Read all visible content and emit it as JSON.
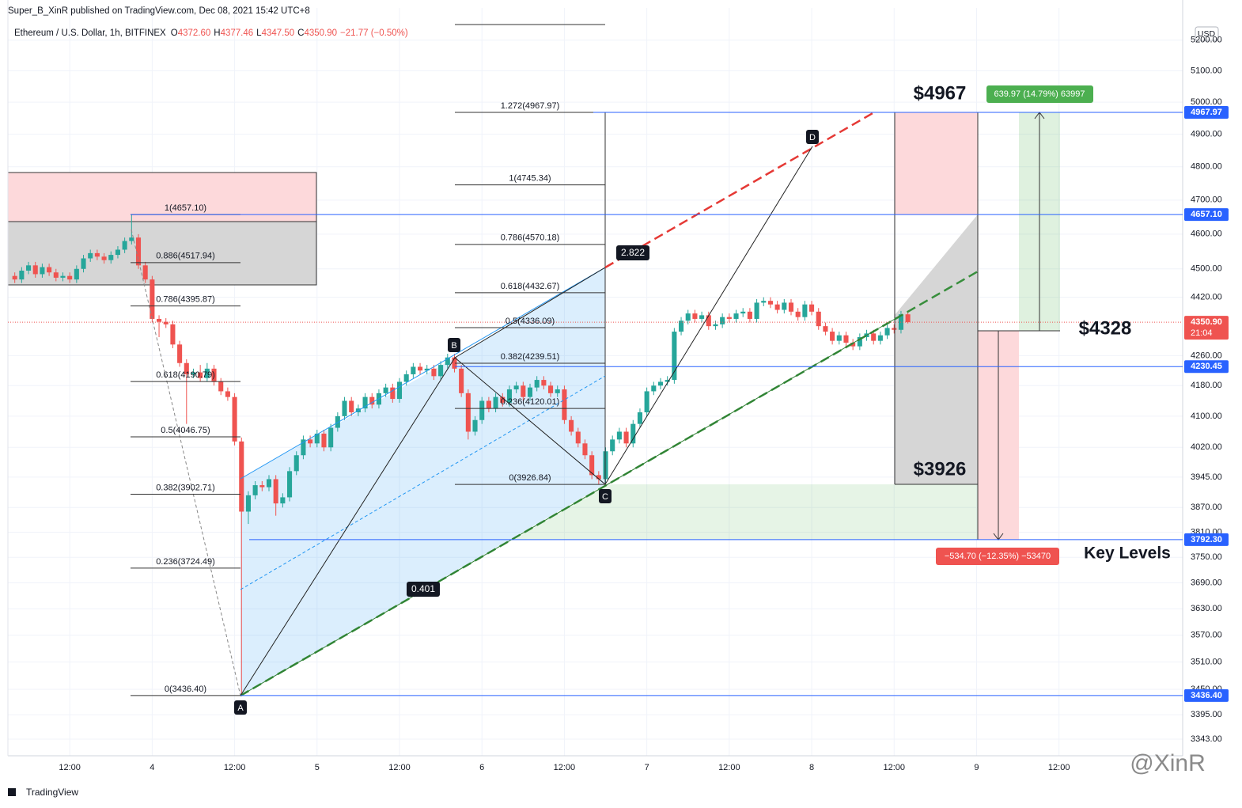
{
  "header": {
    "publisher": "Super_B_XinR published on TradingView.com, Dec 08, 2021 15:42 UTC+8",
    "symbol": "Ethereum / U.S. Dollar, 1h, BITFINEX",
    "ohlc": [
      {
        "key": "O",
        "value": "4372.60"
      },
      {
        "key": "H",
        "value": "4377.46"
      },
      {
        "key": "L",
        "value": "4347.50"
      },
      {
        "key": "C",
        "value": "4350.90"
      }
    ],
    "change": "−21.77 (−0.50%)"
  },
  "chart_data": {
    "type": "candlestick",
    "log": true,
    "grid": true,
    "up_color": "#26a69a",
    "down_color": "#ef5350",
    "xlim": [
      -21,
      150
    ],
    "xticks": [
      {
        "value": -12,
        "label": "12:00"
      },
      {
        "value": 0,
        "label": "4"
      },
      {
        "value": 12,
        "label": "12:00"
      },
      {
        "value": 24,
        "label": "5"
      },
      {
        "value": 36,
        "label": "12:00"
      },
      {
        "value": 48,
        "label": "6"
      },
      {
        "value": 60,
        "label": "12:00"
      },
      {
        "value": 72,
        "label": "7"
      },
      {
        "value": 84,
        "label": "12:00"
      },
      {
        "value": 96,
        "label": "8"
      },
      {
        "value": 108,
        "label": "12:00"
      },
      {
        "value": 120,
        "label": "9"
      },
      {
        "value": 132,
        "label": "12:00"
      }
    ],
    "ylim": [
      3308,
      5307
    ],
    "yticks": [
      {
        "value": 5200,
        "label": "5200.00"
      },
      {
        "value": 5100,
        "label": "5100.00"
      },
      {
        "value": 5000,
        "label": "5000.00"
      },
      {
        "value": 4900,
        "label": "4900.00"
      },
      {
        "value": 4800,
        "label": "4800.00"
      },
      {
        "value": 4700,
        "label": "4700.00"
      },
      {
        "value": 4600,
        "label": "4600.00"
      },
      {
        "value": 4500,
        "label": "4500.00"
      },
      {
        "value": 4420,
        "label": "4420.00"
      },
      {
        "value": 4260,
        "label": "4260.00"
      },
      {
        "value": 4180,
        "label": "4180.00"
      },
      {
        "value": 4100,
        "label": "4100.00"
      },
      {
        "value": 4020,
        "label": "4020.00"
      },
      {
        "value": 3945,
        "label": "3945.00"
      },
      {
        "value": 3870,
        "label": "3870.00"
      },
      {
        "value": 3810,
        "label": "3810.00"
      },
      {
        "value": 3750,
        "label": "3750.00"
      },
      {
        "value": 3690,
        "label": "3690.00"
      },
      {
        "value": 3630,
        "label": "3630.00"
      },
      {
        "value": 3570,
        "label": "3570.00"
      },
      {
        "value": 3510,
        "label": "3510.00"
      },
      {
        "value": 3450,
        "label": "3450.00"
      },
      {
        "value": 3395,
        "label": "3395.00"
      },
      {
        "value": 3343,
        "label": "3343.00"
      }
    ],
    "currency": "USD",
    "candles": [
      [
        -20,
        4480,
        4490,
        4460,
        4470
      ],
      [
        -19,
        4470,
        4505,
        4460,
        4495
      ],
      [
        -18,
        4495,
        4520,
        4485,
        4510
      ],
      [
        -17,
        4510,
        4520,
        4475,
        4485
      ],
      [
        -16,
        4485,
        4515,
        4475,
        4505
      ],
      [
        -15,
        4505,
        4515,
        4480,
        4490
      ],
      [
        -14,
        4490,
        4500,
        4465,
        4475
      ],
      [
        -13,
        4475,
        4490,
        4465,
        4480
      ],
      [
        -12,
        4480,
        4490,
        4460,
        4470
      ],
      [
        -11,
        4470,
        4510,
        4460,
        4500
      ],
      [
        -10,
        4500,
        4540,
        4490,
        4530
      ],
      [
        -9,
        4530,
        4555,
        4520,
        4545
      ],
      [
        -8,
        4545,
        4555,
        4525,
        4535
      ],
      [
        -7,
        4535,
        4545,
        4515,
        4525
      ],
      [
        -6,
        4525,
        4550,
        4515,
        4540
      ],
      [
        -5,
        4540,
        4565,
        4530,
        4555
      ],
      [
        -4,
        4555,
        4590,
        4545,
        4580
      ],
      [
        -3,
        4580,
        4657.1,
        4570,
        4590
      ],
      [
        -2,
        4590,
        4600,
        4500,
        4510
      ],
      [
        -1,
        4510,
        4520,
        4460,
        4470
      ],
      [
        0,
        4470,
        4480,
        4350,
        4360
      ],
      [
        1,
        4360,
        4370,
        4310,
        4352
      ],
      [
        2,
        4352,
        4362,
        4335,
        4345
      ],
      [
        3,
        4345,
        4355,
        4280,
        4290
      ],
      [
        4,
        4290,
        4300,
        4230,
        4240
      ],
      [
        5,
        4240,
        4250,
        4080,
        4210
      ],
      [
        6,
        4210,
        4225,
        4200,
        4215
      ],
      [
        7,
        4215,
        4235,
        4190,
        4200
      ],
      [
        8,
        4200,
        4240,
        4190,
        4225
      ],
      [
        9,
        4225,
        4235,
        4180,
        4190
      ],
      [
        10,
        4190,
        4200,
        4155,
        4165
      ],
      [
        11,
        4165,
        4175,
        4140,
        4150
      ],
      [
        12,
        4150,
        4160,
        4025,
        4035
      ],
      [
        13,
        4035,
        4045,
        3436.4,
        3860
      ],
      [
        14,
        3860,
        3910,
        3830,
        3900
      ],
      [
        15,
        3900,
        3935,
        3890,
        3925
      ],
      [
        16,
        3925,
        3935,
        3910,
        3920
      ],
      [
        17,
        3920,
        3950,
        3910,
        3940
      ],
      [
        18,
        3940,
        3950,
        3850,
        3880
      ],
      [
        19,
        3880,
        3905,
        3870,
        3895
      ],
      [
        20,
        3895,
        3970,
        3885,
        3960
      ],
      [
        21,
        3960,
        4010,
        3950,
        4000
      ],
      [
        22,
        4000,
        4050,
        3990,
        4040
      ],
      [
        23,
        4040,
        4050,
        4020,
        4030
      ],
      [
        24,
        4030,
        4065,
        4020,
        4055
      ],
      [
        25,
        4055,
        4065,
        4010,
        4020
      ],
      [
        26,
        4020,
        4080,
        4010,
        4070
      ],
      [
        27,
        4070,
        4110,
        4060,
        4100
      ],
      [
        28,
        4100,
        4150,
        4090,
        4140
      ],
      [
        29,
        4140,
        4150,
        4100,
        4110
      ],
      [
        30,
        4110,
        4130,
        4100,
        4120
      ],
      [
        31,
        4120,
        4160,
        4110,
        4150
      ],
      [
        32,
        4150,
        4160,
        4120,
        4130
      ],
      [
        33,
        4130,
        4170,
        4120,
        4160
      ],
      [
        34,
        4160,
        4185,
        4150,
        4175
      ],
      [
        35,
        4175,
        4185,
        4135,
        4145
      ],
      [
        36,
        4145,
        4200,
        4135,
        4190
      ],
      [
        37,
        4190,
        4220,
        4180,
        4210
      ],
      [
        38,
        4210,
        4240,
        4200,
        4230
      ],
      [
        39,
        4230,
        4240,
        4210,
        4220
      ],
      [
        40,
        4220,
        4235,
        4210,
        4225
      ],
      [
        41,
        4225,
        4235,
        4195,
        4205
      ],
      [
        42,
        4205,
        4245,
        4195,
        4235
      ],
      [
        43,
        4235,
        4265,
        4225,
        4255
      ],
      [
        44,
        4255,
        4265,
        4215,
        4225
      ],
      [
        45,
        4225,
        4235,
        4150,
        4160
      ],
      [
        46,
        4160,
        4170,
        4040,
        4060
      ],
      [
        47,
        4060,
        4100,
        4050,
        4090
      ],
      [
        48,
        4090,
        4150,
        4080,
        4140
      ],
      [
        49,
        4140,
        4150,
        4110,
        4120
      ],
      [
        50,
        4120,
        4160,
        4110,
        4150
      ],
      [
        51,
        4150,
        4160,
        4125,
        4135
      ],
      [
        52,
        4135,
        4180,
        4125,
        4170
      ],
      [
        53,
        4170,
        4190,
        4160,
        4180
      ],
      [
        54,
        4180,
        4190,
        4140,
        4150
      ],
      [
        55,
        4150,
        4185,
        4140,
        4175
      ],
      [
        56,
        4175,
        4205,
        4165,
        4195
      ],
      [
        57,
        4195,
        4205,
        4170,
        4180
      ],
      [
        58,
        4180,
        4190,
        4150,
        4160
      ],
      [
        59,
        4160,
        4180,
        4150,
        4170
      ],
      [
        60,
        4170,
        4180,
        4080,
        4090
      ],
      [
        61,
        4090,
        4100,
        4050,
        4060
      ],
      [
        62,
        4060,
        4070,
        4020,
        4030
      ],
      [
        63,
        4030,
        4040,
        3990,
        4000
      ],
      [
        64,
        4000,
        4010,
        3940,
        3950
      ],
      [
        65,
        3950,
        3960,
        3926.84,
        3940
      ],
      [
        66,
        3940,
        4020,
        3930,
        4010
      ],
      [
        67,
        4010,
        4050,
        4000,
        4040
      ],
      [
        68,
        4040,
        4070,
        4030,
        4060
      ],
      [
        69,
        4060,
        4070,
        4020,
        4030
      ],
      [
        70,
        4030,
        4090,
        4020,
        4080
      ],
      [
        71,
        4080,
        4120,
        4070,
        4110
      ],
      [
        72,
        4110,
        4175,
        4100,
        4165
      ],
      [
        73,
        4165,
        4190,
        4155,
        4180
      ],
      [
        74,
        4180,
        4200,
        4170,
        4190
      ],
      [
        75,
        4190,
        4205,
        4180,
        4195
      ],
      [
        76,
        4195,
        4335,
        4185,
        4325
      ],
      [
        77,
        4325,
        4365,
        4315,
        4355
      ],
      [
        78,
        4355,
        4385,
        4345,
        4375
      ],
      [
        79,
        4375,
        4385,
        4350,
        4360
      ],
      [
        80,
        4360,
        4380,
        4350,
        4370
      ],
      [
        81,
        4370,
        4380,
        4330,
        4340
      ],
      [
        82,
        4340,
        4355,
        4330,
        4345
      ],
      [
        83,
        4345,
        4375,
        4335,
        4365
      ],
      [
        84,
        4365,
        4375,
        4350,
        4360
      ],
      [
        85,
        4360,
        4385,
        4350,
        4375
      ],
      [
        86,
        4375,
        4390,
        4365,
        4380
      ],
      [
        87,
        4380,
        4390,
        4350,
        4360
      ],
      [
        88,
        4360,
        4415,
        4350,
        4405
      ],
      [
        89,
        4405,
        4420,
        4395,
        4410
      ],
      [
        90,
        4410,
        4420,
        4390,
        4400
      ],
      [
        91,
        4400,
        4410,
        4375,
        4385
      ],
      [
        92,
        4385,
        4415,
        4375,
        4405
      ],
      [
        93,
        4405,
        4415,
        4370,
        4380
      ],
      [
        94,
        4380,
        4390,
        4355,
        4365
      ],
      [
        95,
        4365,
        4410,
        4355,
        4400
      ],
      [
        96,
        4400,
        4410,
        4370,
        4380
      ],
      [
        97,
        4380,
        4390,
        4330,
        4340
      ],
      [
        98,
        4340,
        4350,
        4315,
        4325
      ],
      [
        99,
        4325,
        4335,
        4290,
        4300
      ],
      [
        100,
        4300,
        4325,
        4290,
        4315
      ],
      [
        101,
        4315,
        4325,
        4285,
        4295
      ],
      [
        102,
        4295,
        4305,
        4275,
        4285
      ],
      [
        103,
        4285,
        4320,
        4275,
        4310
      ],
      [
        104,
        4310,
        4330,
        4300,
        4320
      ],
      [
        105,
        4320,
        4330,
        4290,
        4300
      ],
      [
        106,
        4300,
        4325,
        4290,
        4315
      ],
      [
        107,
        4315,
        4345,
        4305,
        4335
      ],
      [
        108,
        4335,
        4345,
        4320,
        4330
      ],
      [
        109,
        4330,
        4382,
        4320,
        4372.6
      ],
      [
        110,
        4372.6,
        4377.46,
        4347.5,
        4350.9
      ]
    ],
    "fib_left": [
      {
        "label": "1(4657.10)",
        "value": 4657.1
      },
      {
        "label": "0.886(4517.94)",
        "value": 4517.94
      },
      {
        "label": "0.786(4395.87)",
        "value": 4395.87
      },
      {
        "label": "0.618(4190.79)",
        "value": 4190.79
      },
      {
        "label": "0.5(4046.75)",
        "value": 4046.75
      },
      {
        "label": "0.382(3902.71)",
        "value": 3902.71
      },
      {
        "label": "0.236(3724.49)",
        "value": 3724.49
      },
      {
        "label": "0(3436.40)",
        "value": 3436.4
      }
    ],
    "fib_right": [
      {
        "label": "1.272(4967.97)",
        "value": 4967.97
      },
      {
        "label": "1(4745.34)",
        "value": 4745.34
      },
      {
        "label": "0.786(4570.18)",
        "value": 4570.18
      },
      {
        "label": "0.618(4432.67)",
        "value": 4432.67
      },
      {
        "label": "0.5(4336.09)",
        "value": 4336.09
      },
      {
        "label": "0.382(4239.51)",
        "value": 4239.51
      },
      {
        "label": "0.236(4120.01)",
        "value": 4120.01
      },
      {
        "label": "0(3926.84)",
        "value": 3926.84
      }
    ],
    "price_lines": [
      {
        "value": 4967.97,
        "label": "4967.97",
        "color": "#2962ff"
      },
      {
        "value": 4657.1,
        "label": "4657.10",
        "color": "#2962ff"
      },
      {
        "value": 4230.45,
        "label": "4230.45",
        "color": "#2962ff"
      },
      {
        "value": 3792.3,
        "label": "3792.30",
        "color": "#2962ff"
      },
      {
        "value": 3436.4,
        "label": "3436.40",
        "color": "#2962ff"
      }
    ],
    "last_price": {
      "value": 4350.9,
      "label": "4350.90",
      "countdown": "21:04",
      "color": "#ef5350"
    },
    "targets": [
      "$4967",
      "$3926",
      "$4328"
    ],
    "key_levels": "Key Levels",
    "measure_up": "639.97 (14.79%) 63997",
    "measure_down": "−534.70 (−12.35%) −53470",
    "ratios": [
      "2.822",
      "0.401"
    ],
    "points": [
      "A",
      "B",
      "C",
      "D"
    ]
  },
  "footer": {
    "brand": "TradingView",
    "watermark": "@XinR"
  }
}
